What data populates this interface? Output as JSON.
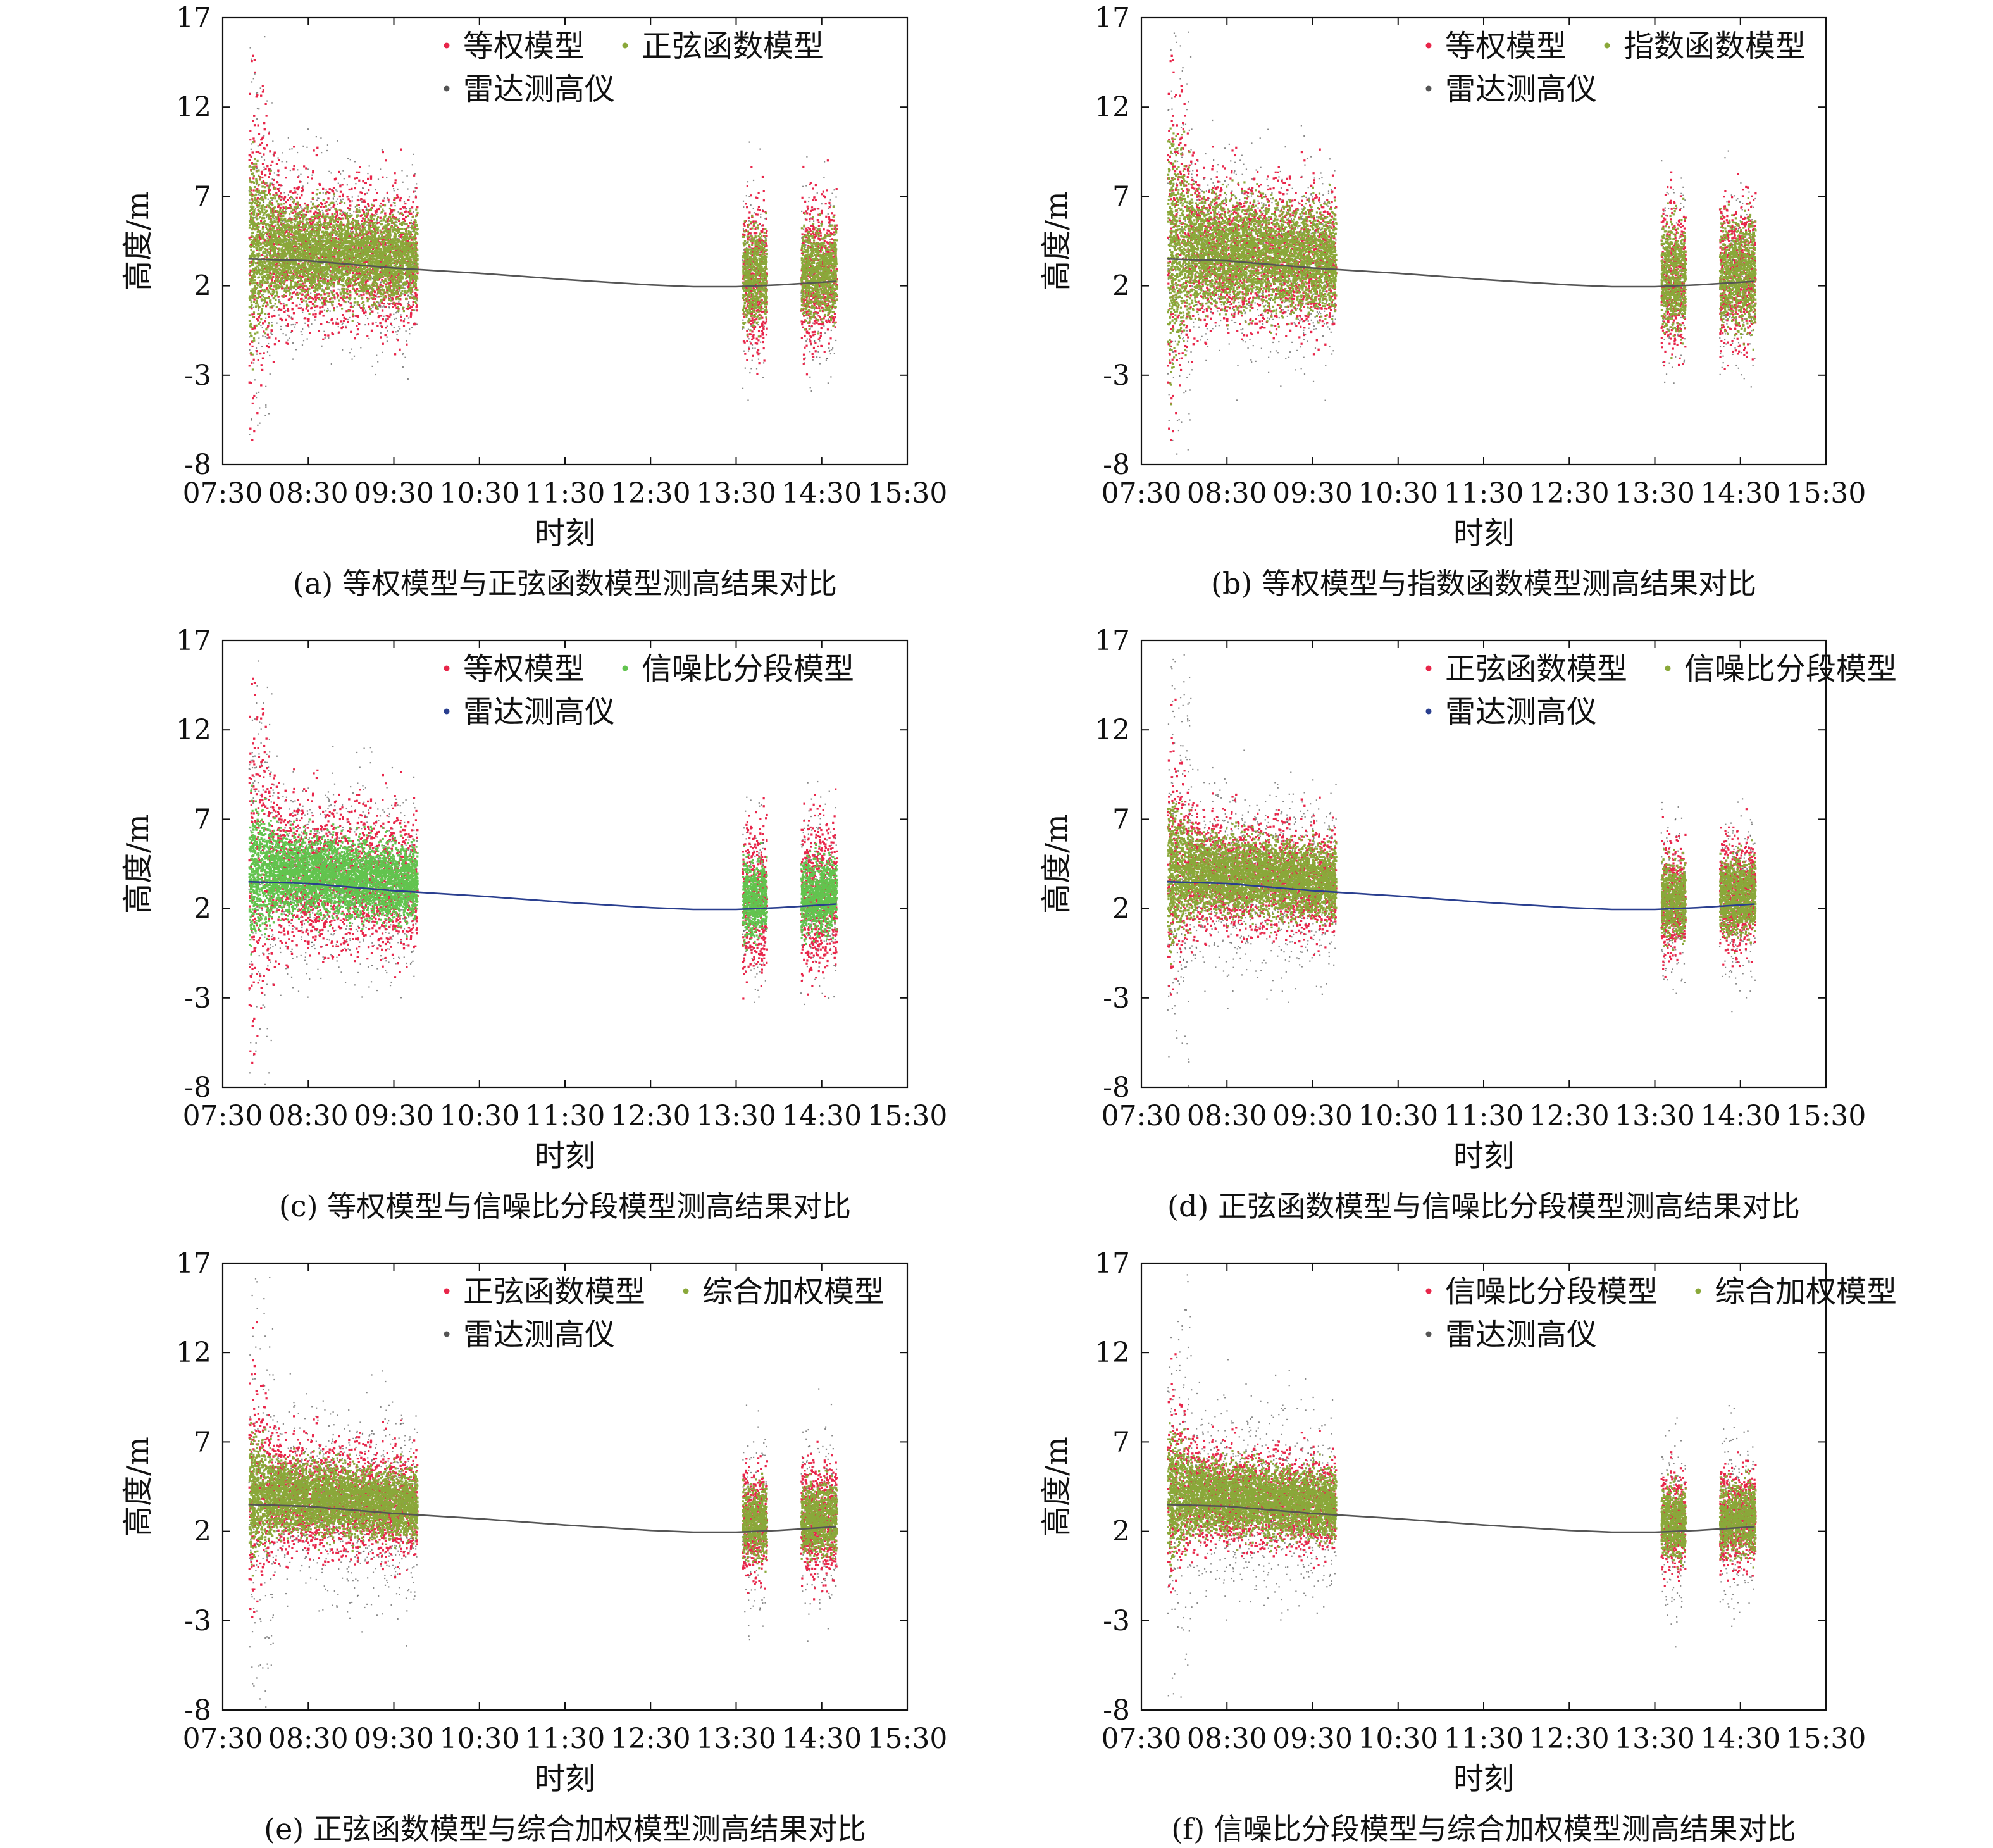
{
  "figure": {
    "colors": {
      "red": "#e8264a",
      "green": "#62c44f",
      "olive": "#8aa83a",
      "gray": "#555555",
      "navy": "#2a3f8f",
      "frame": "#111111"
    }
  },
  "chart_data": [
    {
      "id": "a",
      "type": "scatter",
      "caption": "(a) 等权模型与正弦函数模型测高结果对比",
      "xlabel": "时刻",
      "ylabel": "高度/m",
      "ylim": [
        -8,
        17
      ],
      "yticks": [
        "17",
        "12",
        "7",
        "2",
        "-3",
        "-8"
      ],
      "xticks": [
        "07:30",
        "08:30",
        "09:30",
        "10:30",
        "11:30",
        "12:30",
        "13:30",
        "14:30",
        "15:30"
      ],
      "legend": {
        "placement": "top-center",
        "entries": [
          "等权模型",
          "正弦函数模型",
          "雷达测高仪"
        ]
      },
      "series": [
        {
          "name": "等权模型",
          "color": "red",
          "style": "points",
          "outer_spread": 1.0,
          "segments": [
            [
              "07:48",
              "09:46"
            ],
            [
              "13:34",
              "13:51"
            ],
            [
              "14:15",
              "14:40"
            ]
          ]
        },
        {
          "name": "正弦函数模型",
          "color": "olive",
          "style": "points",
          "outer_spread": 0.72,
          "segments": [
            [
              "07:48",
              "09:46"
            ],
            [
              "13:34",
              "13:51"
            ],
            [
              "14:15",
              "14:40"
            ]
          ]
        },
        {
          "name": "雷达测高仪",
          "color": "gray",
          "style": "line",
          "x": [
            "07:48",
            "08:30",
            "09:30",
            "10:30",
            "11:30",
            "12:30",
            "13:00",
            "13:30",
            "14:00",
            "14:40"
          ],
          "y": [
            3.5,
            3.4,
            3.0,
            2.7,
            2.35,
            2.05,
            1.95,
            1.95,
            2.05,
            2.25
          ]
        }
      ]
    },
    {
      "id": "b",
      "type": "scatter",
      "caption": "(b) 等权模型与指数函数模型测高结果对比",
      "xlabel": "时刻",
      "ylabel": "高度/m",
      "ylim": [
        -8,
        17
      ],
      "yticks": [
        "17",
        "12",
        "7",
        "2",
        "-3",
        "-8"
      ],
      "xticks": [
        "07:30",
        "08:30",
        "09:30",
        "10:30",
        "11:30",
        "12:30",
        "13:30",
        "14:30",
        "15:30"
      ],
      "legend": {
        "placement": "top-right",
        "entries": [
          "等权模型",
          "指数函数模型",
          "雷达测高仪"
        ]
      },
      "series": [
        {
          "name": "等权模型",
          "color": "red",
          "style": "points",
          "outer_spread": 1.0,
          "segments": [
            [
              "07:48",
              "09:46"
            ],
            [
              "13:34",
              "13:51"
            ],
            [
              "14:15",
              "14:40"
            ]
          ]
        },
        {
          "name": "指数函数模型",
          "color": "olive",
          "style": "points",
          "outer_spread": 0.85,
          "segments": [
            [
              "07:48",
              "09:46"
            ],
            [
              "13:34",
              "13:51"
            ],
            [
              "14:15",
              "14:40"
            ]
          ]
        },
        {
          "name": "雷达测高仪",
          "color": "gray",
          "style": "line",
          "x": [
            "07:48",
            "08:30",
            "09:30",
            "10:30",
            "11:30",
            "12:30",
            "13:00",
            "13:30",
            "14:00",
            "14:40"
          ],
          "y": [
            3.5,
            3.4,
            3.0,
            2.7,
            2.35,
            2.05,
            1.95,
            1.95,
            2.05,
            2.25
          ]
        }
      ]
    },
    {
      "id": "c",
      "type": "scatter",
      "caption": "(c) 等权模型与信噪比分段模型测高结果对比",
      "xlabel": "时刻",
      "ylabel": "高度/m",
      "ylim": [
        -8,
        17
      ],
      "yticks": [
        "17",
        "12",
        "7",
        "2",
        "-3",
        "-8"
      ],
      "xticks": [
        "07:30",
        "08:30",
        "09:30",
        "10:30",
        "11:30",
        "12:30",
        "13:30",
        "14:30",
        "15:30"
      ],
      "legend": {
        "placement": "top-center",
        "entries": [
          "等权模型",
          "信噪比分段模型",
          "雷达测高仪"
        ]
      },
      "series": [
        {
          "name": "等权模型",
          "color": "red",
          "style": "points",
          "outer_spread": 1.0,
          "segments": [
            [
              "07:48",
              "09:46"
            ],
            [
              "13:34",
              "13:51"
            ],
            [
              "14:15",
              "14:40"
            ]
          ]
        },
        {
          "name": "信噪比分段模型",
          "color": "green",
          "style": "points",
          "outer_spread": 0.6,
          "segments": [
            [
              "07:48",
              "09:46"
            ],
            [
              "13:34",
              "13:51"
            ],
            [
              "14:15",
              "14:40"
            ]
          ]
        },
        {
          "name": "雷达测高仪",
          "color": "navy",
          "style": "line",
          "x": [
            "07:48",
            "08:30",
            "09:30",
            "10:30",
            "11:30",
            "12:30",
            "13:00",
            "13:30",
            "14:00",
            "14:40"
          ],
          "y": [
            3.5,
            3.4,
            3.0,
            2.7,
            2.35,
            2.05,
            1.95,
            1.95,
            2.05,
            2.25
          ]
        }
      ]
    },
    {
      "id": "d",
      "type": "scatter",
      "caption": "(d) 正弦函数模型与信噪比分段模型测高结果对比",
      "xlabel": "时刻",
      "ylabel": "高度/m",
      "ylim": [
        -8,
        17
      ],
      "yticks": [
        "17",
        "12",
        "7",
        "2",
        "-3",
        "-8"
      ],
      "xticks": [
        "07:30",
        "08:30",
        "09:30",
        "10:30",
        "11:30",
        "12:30",
        "13:30",
        "14:30",
        "15:30"
      ],
      "legend": {
        "placement": "top-right",
        "entries": [
          "正弦函数模型",
          "信噪比分段模型",
          "雷达测高仪"
        ]
      },
      "series": [
        {
          "name": "正弦函数模型",
          "color": "red",
          "style": "points",
          "outer_spread": 0.72,
          "segments": [
            [
              "07:48",
              "09:46"
            ],
            [
              "13:34",
              "13:51"
            ],
            [
              "14:15",
              "14:40"
            ]
          ]
        },
        {
          "name": "信噪比分段模型",
          "color": "olive",
          "style": "points",
          "outer_spread": 0.6,
          "segments": [
            [
              "07:48",
              "09:46"
            ],
            [
              "13:34",
              "13:51"
            ],
            [
              "14:15",
              "14:40"
            ]
          ]
        },
        {
          "name": "雷达测高仪",
          "color": "navy",
          "style": "line",
          "x": [
            "07:48",
            "08:30",
            "09:30",
            "10:30",
            "11:30",
            "12:30",
            "13:00",
            "13:30",
            "14:00",
            "14:40"
          ],
          "y": [
            3.5,
            3.4,
            3.0,
            2.7,
            2.35,
            2.05,
            1.95,
            1.95,
            2.05,
            2.25
          ]
        }
      ]
    },
    {
      "id": "e",
      "type": "scatter",
      "caption": "(e) 正弦函数模型与综合加权模型测高结果对比",
      "xlabel": "时刻",
      "ylabel": "高度/m",
      "ylim": [
        -8,
        17
      ],
      "yticks": [
        "17",
        "12",
        "7",
        "2",
        "-3",
        "-8"
      ],
      "xticks": [
        "07:30",
        "08:30",
        "09:30",
        "10:30",
        "11:30",
        "12:30",
        "13:30",
        "14:30",
        "15:30"
      ],
      "legend": {
        "placement": "top-center",
        "entries": [
          "正弦函数模型",
          "综合加权模型",
          "雷达测高仪"
        ]
      },
      "series": [
        {
          "name": "正弦函数模型",
          "color": "red",
          "style": "points",
          "outer_spread": 0.72,
          "segments": [
            [
              "07:48",
              "09:46"
            ],
            [
              "13:34",
              "13:51"
            ],
            [
              "14:15",
              "14:40"
            ]
          ]
        },
        {
          "name": "综合加权模型",
          "color": "olive",
          "style": "points",
          "outer_spread": 0.55,
          "segments": [
            [
              "07:48",
              "09:46"
            ],
            [
              "13:34",
              "13:51"
            ],
            [
              "14:15",
              "14:40"
            ]
          ]
        },
        {
          "name": "雷达测高仪",
          "color": "gray",
          "style": "line",
          "x": [
            "07:48",
            "08:30",
            "09:30",
            "10:30",
            "11:30",
            "12:30",
            "13:00",
            "13:30",
            "14:00",
            "14:40"
          ],
          "y": [
            3.5,
            3.4,
            3.0,
            2.7,
            2.35,
            2.05,
            1.95,
            1.95,
            2.05,
            2.25
          ]
        }
      ]
    },
    {
      "id": "f",
      "type": "scatter",
      "caption": "(f) 信噪比分段模型与综合加权模型测高结果对比",
      "xlabel": "时刻",
      "ylabel": "高度/m",
      "ylim": [
        -8,
        17
      ],
      "yticks": [
        "17",
        "12",
        "7",
        "2",
        "-3",
        "-8"
      ],
      "xticks": [
        "07:30",
        "08:30",
        "09:30",
        "10:30",
        "11:30",
        "12:30",
        "13:30",
        "14:30",
        "15:30"
      ],
      "legend": {
        "placement": "top-right",
        "entries": [
          "信噪比分段模型",
          "综合加权模型",
          "雷达测高仪"
        ]
      },
      "series": [
        {
          "name": "信噪比分段模型",
          "color": "red",
          "style": "points",
          "outer_spread": 0.6,
          "segments": [
            [
              "07:48",
              "09:46"
            ],
            [
              "13:34",
              "13:51"
            ],
            [
              "14:15",
              "14:40"
            ]
          ]
        },
        {
          "name": "综合加权模型",
          "color": "olive",
          "style": "points",
          "outer_spread": 0.55,
          "segments": [
            [
              "07:48",
              "09:46"
            ],
            [
              "13:34",
              "13:51"
            ],
            [
              "14:15",
              "14:40"
            ]
          ]
        },
        {
          "name": "雷达测高仪",
          "color": "gray",
          "style": "line",
          "x": [
            "07:48",
            "08:30",
            "09:30",
            "10:30",
            "11:30",
            "12:30",
            "13:00",
            "13:30",
            "14:00",
            "14:40"
          ],
          "y": [
            3.5,
            3.4,
            3.0,
            2.7,
            2.35,
            2.05,
            1.95,
            1.95,
            2.05,
            2.25
          ]
        }
      ]
    }
  ]
}
